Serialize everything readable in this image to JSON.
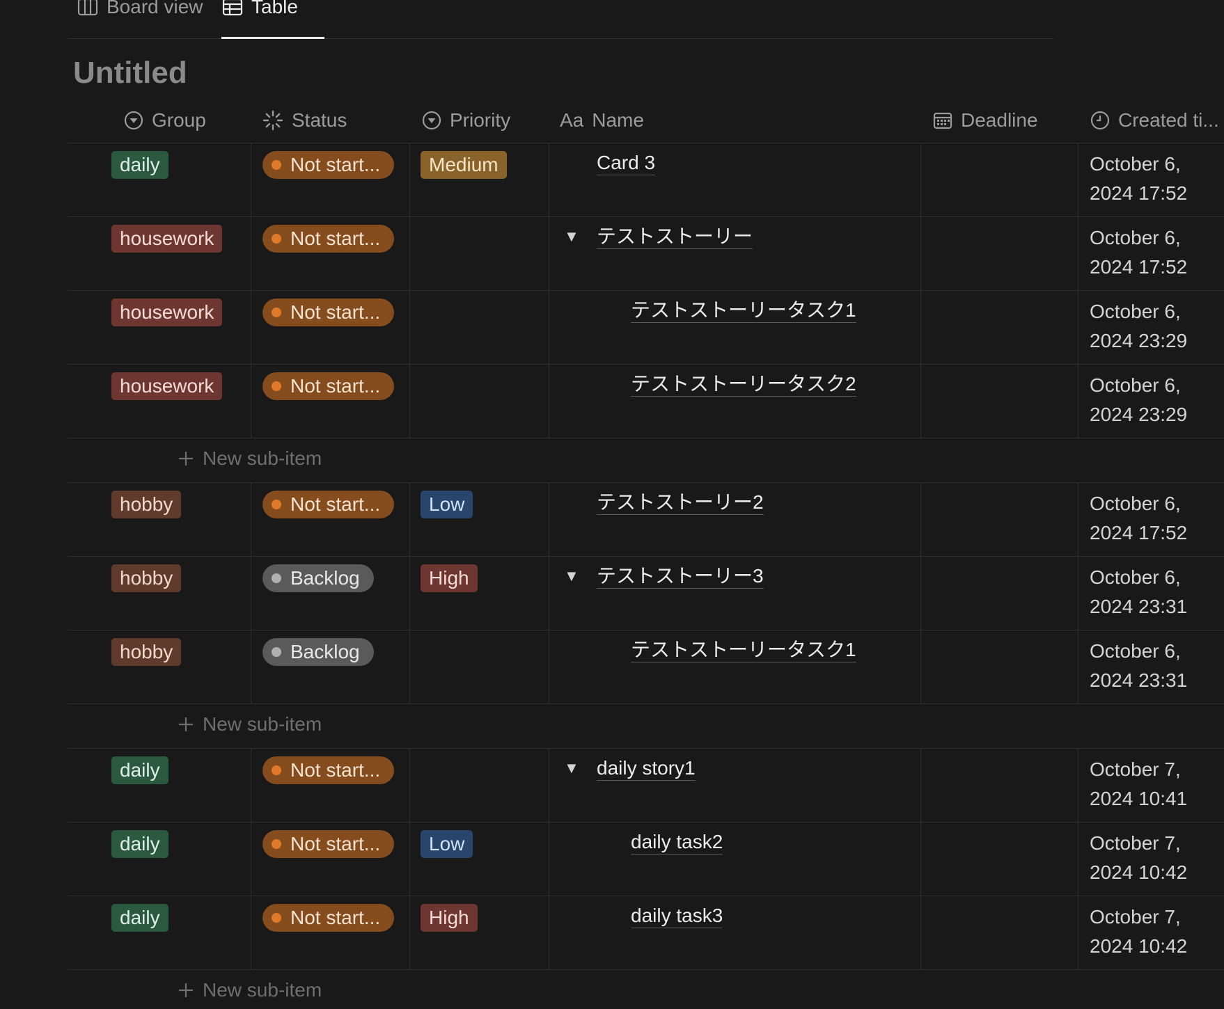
{
  "tabs": [
    {
      "label": "Board view",
      "icon": "board-icon"
    },
    {
      "label": "Table",
      "icon": "table-icon"
    }
  ],
  "title": "Untitled",
  "columns": {
    "group": "Group",
    "status": "Status",
    "priority": "Priority",
    "name_prefix": "Aa",
    "name": "Name",
    "deadline": "Deadline",
    "created": "Created ti..."
  },
  "rows": [
    {
      "group": "daily",
      "status": "Not start...",
      "priority": "Medium",
      "name": "Card 3",
      "toggle": "",
      "created": "October 6,\n2024 17:52"
    },
    {
      "group": "housework",
      "status": "Not start...",
      "priority": "",
      "name": "テストストーリー",
      "toggle": "▼",
      "created": "October 6,\n2024 17:52"
    },
    {
      "group": "housework",
      "status": "Not start...",
      "priority": "",
      "name": "テストストーリータスク1",
      "toggle": "",
      "created": "October 6,\n2024 23:29"
    },
    {
      "group": "housework",
      "status": "Not start...",
      "priority": "",
      "name": "テストストーリータスク2",
      "toggle": "",
      "created": "October 6,\n2024 23:29"
    },
    {
      "group": "hobby",
      "status": "Not start...",
      "priority": "Low",
      "name": "テストストーリー2",
      "toggle": "",
      "created": "October 6,\n2024 17:52"
    },
    {
      "group": "hobby",
      "status": "Backlog",
      "priority": "High",
      "name": "テストストーリー3",
      "toggle": "▼",
      "created": "October 6,\n2024 23:31"
    },
    {
      "group": "hobby",
      "status": "Backlog",
      "priority": "",
      "name": "テストストーリータスク1",
      "toggle": "",
      "created": "October 6,\n2024 23:31"
    },
    {
      "group": "daily",
      "status": "Not start...",
      "priority": "",
      "name": "daily story1",
      "toggle": "▼",
      "created": "October 7,\n2024 10:41"
    },
    {
      "group": "daily",
      "status": "Not start...",
      "priority": "Low",
      "name": "daily task2",
      "toggle": "",
      "created": "October 7,\n2024 10:42"
    },
    {
      "group": "daily",
      "status": "Not start...",
      "priority": "High",
      "name": "daily task3",
      "toggle": "",
      "created": "October 7,\n2024 10:42"
    }
  ],
  "new_sub_item_label": "New sub-item",
  "colors": {
    "background": "#191919",
    "daily": "#2b593f",
    "housework": "#6e3630",
    "hobby": "#603b2c",
    "status_not_started": "#854c1d",
    "status_backlog": "#5a5a5a"
  }
}
